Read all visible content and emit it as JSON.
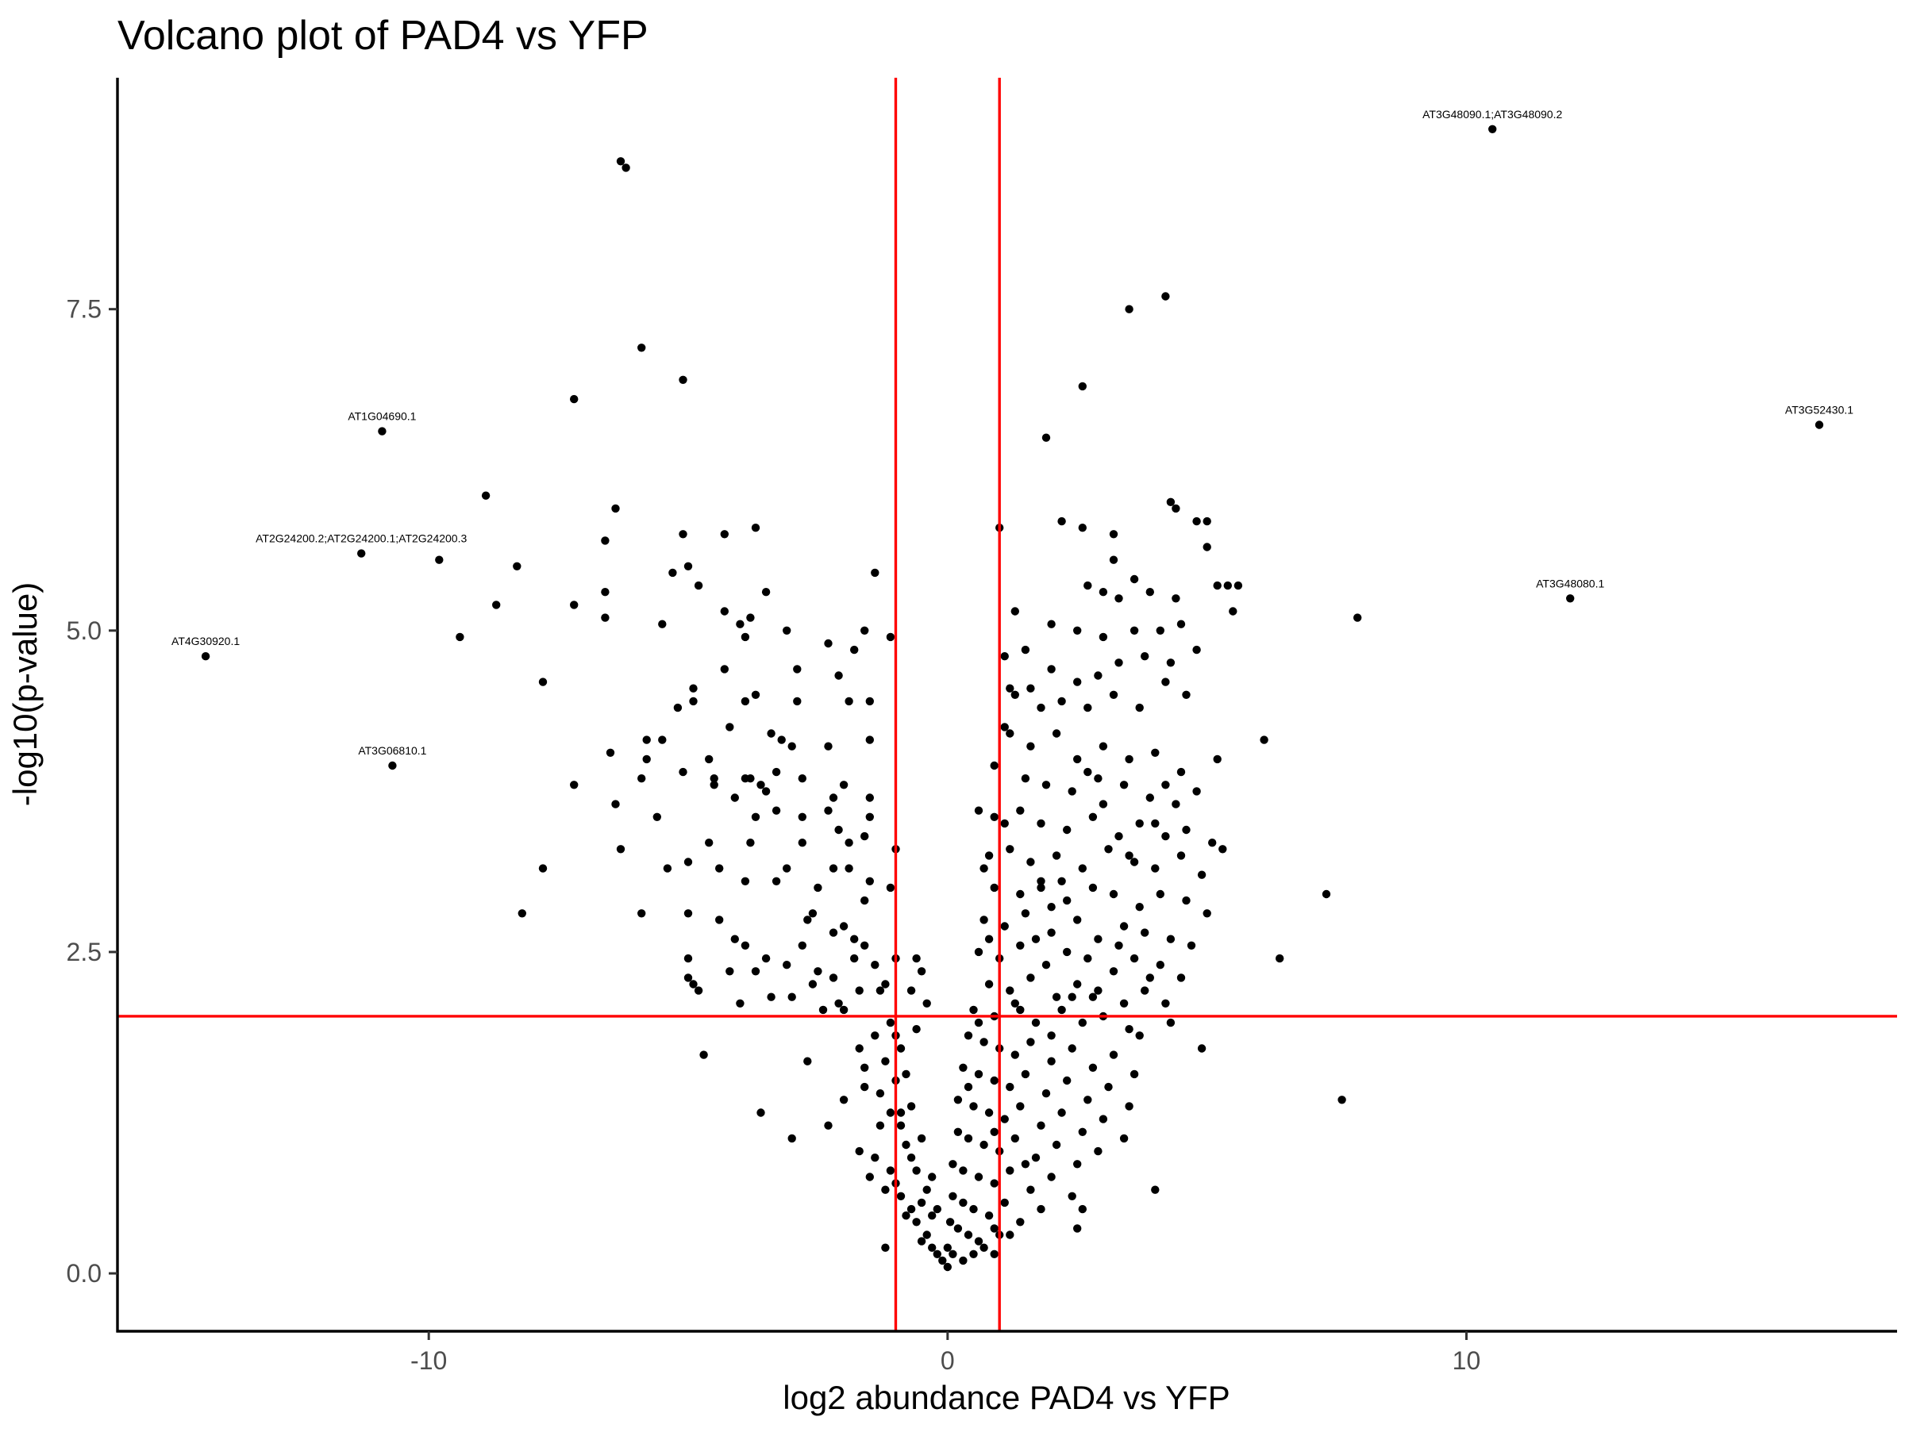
{
  "chart_data": {
    "type": "scatter",
    "title": "Volcano plot of PAD4 vs YFP",
    "xlabel": "log2 abundance PAD4 vs YFP",
    "ylabel": "-log10(p-value)",
    "xlim": [
      -16,
      18.3
    ],
    "ylim": [
      -0.45,
      9.3
    ],
    "x_ticks": [
      -10,
      0,
      10
    ],
    "x_tick_labels": [
      "-10",
      "0",
      "10"
    ],
    "y_ticks": [
      0,
      2.5,
      5,
      7.5
    ],
    "y_tick_labels": [
      "0.0",
      "2.5",
      "5.0",
      "7.5"
    ],
    "grid": false,
    "legend": "none",
    "colors": {
      "points": "#000000",
      "threshold_lines": "#ff0000",
      "axes": "#000000"
    },
    "thresholds": {
      "x": [
        -1,
        1
      ],
      "y": [
        2
      ]
    },
    "labeled_points": [
      {
        "label": "AT3G48090.1;AT3G48090.2",
        "x": 10.5,
        "y": 8.9
      },
      {
        "label": "AT3G52430.1",
        "x": 16.8,
        "y": 6.6
      },
      {
        "label": "AT1G04690.1",
        "x": -10.9,
        "y": 6.55
      },
      {
        "label": "AT2G24200.2;AT2G24200.1;AT2G24200.3",
        "x": -11.3,
        "y": 5.6
      },
      {
        "label": "AT3G48080.1",
        "x": 12.0,
        "y": 5.25
      },
      {
        "label": "AT4G30920.1",
        "x": -14.3,
        "y": 4.8
      },
      {
        "label": "AT3G06810.1",
        "x": -10.7,
        "y": 3.95
      }
    ],
    "points": [
      [
        -6.3,
        8.65
      ],
      [
        -5.9,
        7.2
      ],
      [
        -5.1,
        6.95
      ],
      [
        -7.2,
        6.8
      ],
      [
        -8.9,
        6.05
      ],
      [
        -6.4,
        5.95
      ],
      [
        -9.8,
        5.55
      ],
      [
        -8.3,
        5.5
      ],
      [
        -8.7,
        5.2
      ],
      [
        -9.4,
        4.95
      ],
      [
        -7.8,
        4.6
      ],
      [
        -7.2,
        5.2
      ],
      [
        -6.6,
        5.7
      ],
      [
        -6.6,
        5.3
      ],
      [
        -6.6,
        5.1
      ],
      [
        -5.5,
        5.05
      ],
      [
        -5.3,
        5.45
      ],
      [
        -5.1,
        5.75
      ],
      [
        -5.0,
        5.5
      ],
      [
        -4.3,
        5.75
      ],
      [
        -3.7,
        5.8
      ],
      [
        -4.8,
        5.35
      ],
      [
        -4.3,
        5.15
      ],
      [
        -3.8,
        5.1
      ],
      [
        -3.5,
        5.3
      ],
      [
        -3.9,
        4.95
      ],
      [
        -4.0,
        5.05
      ],
      [
        -3.1,
        5.0
      ],
      [
        -2.3,
        4.9
      ],
      [
        -1.6,
        5.0
      ],
      [
        -1.4,
        5.45
      ],
      [
        -1.1,
        4.95
      ],
      [
        -1.8,
        4.85
      ],
      [
        -2.1,
        4.65
      ],
      [
        -2.9,
        4.7
      ],
      [
        -4.9,
        4.55
      ],
      [
        -4.3,
        4.7
      ],
      [
        -4.9,
        4.45
      ],
      [
        -5.2,
        4.4
      ],
      [
        -3.9,
        4.45
      ],
      [
        -5.8,
        4.15
      ],
      [
        -5.5,
        4.15
      ],
      [
        -6.5,
        4.05
      ],
      [
        -5.8,
        4.0
      ],
      [
        -5.9,
        3.85
      ],
      [
        -5.1,
        3.9
      ],
      [
        -4.6,
        4.0
      ],
      [
        -4.5,
        3.85
      ],
      [
        -4.2,
        4.25
      ],
      [
        -3.7,
        4.5
      ],
      [
        -3.4,
        4.2
      ],
      [
        -3.2,
        4.15
      ],
      [
        -3.0,
        4.1
      ],
      [
        -3.8,
        3.85
      ],
      [
        -3.6,
        3.8
      ],
      [
        -3.3,
        3.9
      ],
      [
        -2.9,
        4.45
      ],
      [
        -2.3,
        4.1
      ],
      [
        -1.9,
        4.45
      ],
      [
        -1.5,
        4.45
      ],
      [
        -1.5,
        4.15
      ],
      [
        -2.8,
        3.85
      ],
      [
        -2.2,
        3.7
      ],
      [
        -2.0,
        3.8
      ],
      [
        -1.5,
        3.7
      ],
      [
        -1.5,
        3.55
      ],
      [
        -7.2,
        3.8
      ],
      [
        -6.4,
        3.65
      ],
      [
        -6.3,
        3.3
      ],
      [
        -5.6,
        3.55
      ],
      [
        -4.5,
        3.8
      ],
      [
        -4.1,
        3.7
      ],
      [
        -3.9,
        3.85
      ],
      [
        -3.7,
        3.55
      ],
      [
        -3.5,
        3.75
      ],
      [
        -3.3,
        3.6
      ],
      [
        -2.8,
        3.55
      ],
      [
        -2.3,
        3.6
      ],
      [
        -2.1,
        3.45
      ],
      [
        -1.6,
        3.4
      ],
      [
        -1.9,
        3.35
      ],
      [
        -1.0,
        3.3
      ],
      [
        -4.6,
        3.35
      ],
      [
        -3.8,
        3.35
      ],
      [
        -2.8,
        3.35
      ],
      [
        -2.2,
        3.15
      ],
      [
        -7.8,
        3.15
      ],
      [
        -5.4,
        3.15
      ],
      [
        -5.0,
        3.2
      ],
      [
        -4.4,
        3.15
      ],
      [
        -3.9,
        3.05
      ],
      [
        -3.3,
        3.05
      ],
      [
        -3.1,
        3.15
      ],
      [
        -2.5,
        3.0
      ],
      [
        -1.9,
        3.15
      ],
      [
        -1.5,
        3.05
      ],
      [
        -1.1,
        3.0
      ],
      [
        -1.6,
        2.9
      ],
      [
        -8.2,
        2.8
      ],
      [
        -5.9,
        2.8
      ],
      [
        -5.0,
        2.8
      ],
      [
        -4.4,
        2.75
      ],
      [
        -4.1,
        2.6
      ],
      [
        -3.9,
        2.55
      ],
      [
        -3.5,
        2.45
      ],
      [
        -2.6,
        2.8
      ],
      [
        -2.7,
        2.75
      ],
      [
        -2.2,
        2.65
      ],
      [
        -2.0,
        2.7
      ],
      [
        -1.8,
        2.6
      ],
      [
        -1.6,
        2.55
      ],
      [
        -2.8,
        2.55
      ],
      [
        -3.1,
        2.4
      ],
      [
        -2.5,
        2.35
      ],
      [
        -2.2,
        2.3
      ],
      [
        -1.8,
        2.45
      ],
      [
        -1.4,
        2.4
      ],
      [
        -1.0,
        2.45
      ],
      [
        -0.6,
        2.45
      ],
      [
        -0.5,
        2.35
      ],
      [
        -5.0,
        2.45
      ],
      [
        -5.0,
        2.3
      ],
      [
        -4.8,
        2.2
      ],
      [
        -4.9,
        2.25
      ],
      [
        -4.2,
        2.35
      ],
      [
        -3.7,
        2.35
      ],
      [
        -3.4,
        2.15
      ],
      [
        -3.0,
        2.15
      ],
      [
        -2.6,
        2.25
      ],
      [
        -2.4,
        2.05
      ],
      [
        -2.1,
        2.1
      ],
      [
        -1.7,
        2.2
      ],
      [
        -1.3,
        2.2
      ],
      [
        -1.2,
        2.25
      ],
      [
        -0.7,
        2.2
      ],
      [
        -0.4,
        2.1
      ],
      [
        -4.0,
        2.1
      ],
      [
        -2.0,
        2.05
      ],
      [
        -6.2,
        8.6
      ],
      [
        -4.7,
        1.7
      ],
      [
        -2.7,
        1.65
      ],
      [
        -1.7,
        1.75
      ],
      [
        -1.0,
        1.85
      ],
      [
        -3.6,
        1.25
      ],
      [
        -3.0,
        1.05
      ],
      [
        -2.3,
        1.15
      ],
      [
        -2.0,
        1.35
      ],
      [
        -1.6,
        1.45
      ],
      [
        -1.3,
        1.15
      ],
      [
        -0.9,
        1.25
      ],
      [
        3.5,
        7.5
      ],
      [
        4.2,
        7.6
      ],
      [
        2.6,
        6.9
      ],
      [
        1.9,
        6.5
      ],
      [
        4.3,
        6.0
      ],
      [
        4.4,
        5.95
      ],
      [
        4.8,
        5.85
      ],
      [
        5.0,
        5.85
      ],
      [
        2.2,
        5.85
      ],
      [
        1.0,
        5.8
      ],
      [
        2.6,
        5.8
      ],
      [
        3.2,
        5.75
      ],
      [
        5.0,
        5.65
      ],
      [
        3.2,
        5.55
      ],
      [
        3.6,
        5.4
      ],
      [
        5.2,
        5.35
      ],
      [
        5.4,
        5.35
      ],
      [
        5.6,
        5.35
      ],
      [
        2.7,
        5.35
      ],
      [
        3.0,
        5.3
      ],
      [
        3.3,
        5.25
      ],
      [
        3.9,
        5.3
      ],
      [
        4.4,
        5.25
      ],
      [
        5.5,
        5.15
      ],
      [
        1.3,
        5.15
      ],
      [
        2.0,
        5.05
      ],
      [
        2.5,
        5.0
      ],
      [
        3.0,
        4.95
      ],
      [
        3.6,
        5.0
      ],
      [
        4.1,
        5.0
      ],
      [
        4.5,
        5.05
      ],
      [
        1.1,
        4.8
      ],
      [
        1.5,
        4.85
      ],
      [
        2.0,
        4.7
      ],
      [
        2.5,
        4.6
      ],
      [
        2.9,
        4.65
      ],
      [
        3.3,
        4.75
      ],
      [
        3.8,
        4.8
      ],
      [
        4.3,
        4.75
      ],
      [
        4.8,
        4.85
      ],
      [
        1.3,
        4.5
      ],
      [
        1.8,
        4.4
      ],
      [
        2.2,
        4.45
      ],
      [
        2.7,
        4.4
      ],
      [
        3.2,
        4.5
      ],
      [
        3.7,
        4.4
      ],
      [
        4.6,
        4.5
      ],
      [
        4.2,
        4.6
      ],
      [
        6.1,
        4.15
      ],
      [
        1.2,
        4.2
      ],
      [
        1.6,
        4.1
      ],
      [
        2.1,
        4.2
      ],
      [
        2.5,
        4.0
      ],
      [
        3.0,
        4.1
      ],
      [
        3.5,
        4.0
      ],
      [
        4.0,
        4.05
      ],
      [
        4.5,
        3.9
      ],
      [
        5.2,
        4.0
      ],
      [
        1.5,
        3.85
      ],
      [
        1.9,
        3.8
      ],
      [
        2.4,
        3.75
      ],
      [
        2.9,
        3.85
      ],
      [
        3.4,
        3.8
      ],
      [
        3.9,
        3.7
      ],
      [
        4.4,
        3.65
      ],
      [
        4.8,
        3.75
      ],
      [
        0.9,
        3.55
      ],
      [
        1.4,
        3.6
      ],
      [
        1.8,
        3.5
      ],
      [
        2.3,
        3.45
      ],
      [
        2.8,
        3.55
      ],
      [
        3.3,
        3.4
      ],
      [
        3.7,
        3.5
      ],
      [
        4.2,
        3.4
      ],
      [
        4.6,
        3.45
      ],
      [
        5.1,
        3.35
      ],
      [
        0.8,
        3.25
      ],
      [
        1.2,
        3.3
      ],
      [
        1.6,
        3.2
      ],
      [
        2.1,
        3.25
      ],
      [
        2.6,
        3.15
      ],
      [
        3.1,
        3.3
      ],
      [
        3.6,
        3.2
      ],
      [
        4.0,
        3.15
      ],
      [
        4.5,
        3.25
      ],
      [
        4.9,
        3.1
      ],
      [
        5.3,
        3.3
      ],
      [
        0.9,
        3.0
      ],
      [
        1.4,
        2.95
      ],
      [
        1.8,
        3.05
      ],
      [
        2.3,
        2.9
      ],
      [
        2.8,
        3.0
      ],
      [
        3.2,
        2.95
      ],
      [
        3.7,
        2.85
      ],
      [
        4.1,
        2.95
      ],
      [
        4.6,
        2.9
      ],
      [
        5.0,
        2.8
      ],
      [
        0.7,
        2.75
      ],
      [
        1.1,
        2.7
      ],
      [
        1.5,
        2.8
      ],
      [
        2.0,
        2.65
      ],
      [
        2.5,
        2.75
      ],
      [
        2.9,
        2.6
      ],
      [
        3.4,
        2.7
      ],
      [
        3.8,
        2.65
      ],
      [
        4.3,
        2.6
      ],
      [
        4.7,
        2.55
      ],
      [
        0.6,
        2.5
      ],
      [
        1.0,
        2.45
      ],
      [
        1.4,
        2.55
      ],
      [
        1.9,
        2.4
      ],
      [
        2.3,
        2.5
      ],
      [
        2.7,
        2.45
      ],
      [
        3.2,
        2.35
      ],
      [
        3.6,
        2.45
      ],
      [
        4.1,
        2.4
      ],
      [
        4.5,
        2.3
      ],
      [
        0.8,
        2.25
      ],
      [
        1.2,
        2.2
      ],
      [
        1.6,
        2.3
      ],
      [
        2.1,
        2.15
      ],
      [
        2.5,
        2.25
      ],
      [
        2.9,
        2.2
      ],
      [
        3.4,
        2.1
      ],
      [
        3.8,
        2.2
      ],
      [
        4.2,
        2.1
      ],
      [
        0.5,
        2.05
      ],
      [
        0.9,
        2.0
      ],
      [
        1.3,
        2.1
      ],
      [
        1.7,
        1.95
      ],
      [
        2.2,
        2.05
      ],
      [
        2.6,
        1.95
      ],
      [
        3.0,
        2.0
      ],
      [
        3.5,
        1.9
      ],
      [
        4.3,
        1.95
      ],
      [
        4.9,
        1.75
      ],
      [
        7.3,
        2.95
      ],
      [
        7.9,
        5.1
      ],
      [
        6.4,
        2.45
      ],
      [
        7.6,
        1.35
      ],
      [
        4.0,
        0.65
      ],
      [
        0.4,
        1.85
      ],
      [
        0.7,
        1.8
      ],
      [
        1.0,
        1.75
      ],
      [
        1.3,
        1.7
      ],
      [
        1.6,
        1.8
      ],
      [
        2.0,
        1.65
      ],
      [
        2.4,
        1.75
      ],
      [
        2.8,
        1.6
      ],
      [
        3.2,
        1.7
      ],
      [
        3.6,
        1.55
      ],
      [
        0.3,
        1.6
      ],
      [
        0.6,
        1.55
      ],
      [
        0.9,
        1.5
      ],
      [
        1.2,
        1.45
      ],
      [
        1.5,
        1.55
      ],
      [
        1.9,
        1.4
      ],
      [
        2.3,
        1.5
      ],
      [
        2.7,
        1.35
      ],
      [
        3.1,
        1.45
      ],
      [
        3.5,
        1.3
      ],
      [
        0.2,
        1.35
      ],
      [
        0.5,
        1.3
      ],
      [
        0.8,
        1.25
      ],
      [
        1.1,
        1.2
      ],
      [
        1.4,
        1.3
      ],
      [
        1.8,
        1.15
      ],
      [
        2.2,
        1.25
      ],
      [
        2.6,
        1.1
      ],
      [
        3.0,
        1.2
      ],
      [
        3.4,
        1.05
      ],
      [
        0.2,
        1.1
      ],
      [
        0.4,
        1.05
      ],
      [
        0.7,
        1.0
      ],
      [
        1.0,
        0.95
      ],
      [
        1.3,
        1.05
      ],
      [
        1.7,
        0.9
      ],
      [
        2.1,
        1.0
      ],
      [
        2.5,
        0.85
      ],
      [
        2.9,
        0.95
      ],
      [
        0.1,
        0.85
      ],
      [
        0.3,
        0.8
      ],
      [
        0.6,
        0.75
      ],
      [
        0.9,
        0.7
      ],
      [
        1.2,
        0.8
      ],
      [
        1.6,
        0.65
      ],
      [
        2.0,
        0.75
      ],
      [
        2.4,
        0.6
      ],
      [
        2.6,
        0.5
      ],
      [
        2.5,
        0.35
      ],
      [
        0.1,
        0.6
      ],
      [
        0.3,
        0.55
      ],
      [
        0.5,
        0.5
      ],
      [
        0.8,
        0.45
      ],
      [
        1.1,
        0.55
      ],
      [
        1.4,
        0.4
      ],
      [
        1.8,
        0.5
      ],
      [
        0.05,
        0.4
      ],
      [
        0.2,
        0.35
      ],
      [
        0.4,
        0.3
      ],
      [
        0.6,
        0.25
      ],
      [
        0.9,
        0.35
      ],
      [
        1.2,
        0.3
      ],
      [
        0.0,
        0.2
      ],
      [
        0.1,
        0.15
      ],
      [
        0.3,
        0.1
      ],
      [
        0.5,
        0.15
      ],
      [
        0.7,
        0.2
      ],
      [
        -0.1,
        0.1
      ],
      [
        0.0,
        0.05
      ],
      [
        -0.2,
        0.15
      ],
      [
        -0.3,
        0.2
      ],
      [
        -0.4,
        0.3
      ],
      [
        -0.5,
        0.25
      ],
      [
        -0.6,
        0.4
      ],
      [
        -0.7,
        0.5
      ],
      [
        -0.8,
        0.45
      ],
      [
        -0.9,
        0.6
      ],
      [
        -1.0,
        0.7
      ],
      [
        -1.1,
        0.8
      ],
      [
        -1.2,
        0.65
      ],
      [
        -1.4,
        0.9
      ],
      [
        -1.5,
        0.75
      ],
      [
        -1.7,
        0.95
      ],
      [
        -0.3,
        0.45
      ],
      [
        -0.5,
        0.55
      ],
      [
        -0.4,
        0.65
      ],
      [
        -0.6,
        0.8
      ],
      [
        -0.7,
        0.9
      ],
      [
        -0.8,
        1.0
      ],
      [
        -0.5,
        1.05
      ],
      [
        -0.9,
        1.15
      ],
      [
        -1.1,
        1.25
      ],
      [
        -0.7,
        1.3
      ],
      [
        -1.3,
        1.4
      ],
      [
        -1.0,
        1.5
      ],
      [
        -0.8,
        1.55
      ],
      [
        -1.2,
        1.65
      ],
      [
        -0.9,
        1.75
      ],
      [
        -1.6,
        1.6
      ],
      [
        -1.4,
        1.85
      ],
      [
        -0.6,
        1.9
      ],
      [
        -1.1,
        1.95
      ],
      [
        -0.3,
        0.75
      ],
      [
        -0.2,
        0.5
      ],
      [
        -1.2,
        0.2
      ],
      [
        0.9,
        0.15
      ],
      [
        0.4,
        1.45
      ],
      [
        0.6,
        1.95
      ],
      [
        0.8,
        2.6
      ],
      [
        0.7,
        3.15
      ],
      [
        0.6,
        3.6
      ],
      [
        0.9,
        3.95
      ],
      [
        1.1,
        4.25
      ],
      [
        1.2,
        4.55
      ],
      [
        1.6,
        4.55
      ],
      [
        0.9,
        1.1
      ],
      [
        1.5,
        0.85
      ],
      [
        1.0,
        0.3
      ],
      [
        2.2,
        3.05
      ],
      [
        2.0,
        2.85
      ],
      [
        3.0,
        3.65
      ],
      [
        3.5,
        3.25
      ],
      [
        4.0,
        3.5
      ],
      [
        1.7,
        2.6
      ],
      [
        2.4,
        2.15
      ],
      [
        3.3,
        2.55
      ],
      [
        3.9,
        2.3
      ],
      [
        1.1,
        3.5
      ],
      [
        1.8,
        3.0
      ],
      [
        2.7,
        3.9
      ],
      [
        4.2,
        3.8
      ],
      [
        2.8,
        2.15
      ],
      [
        1.4,
        2.05
      ],
      [
        3.7,
        1.85
      ],
      [
        2.0,
        1.85
      ]
    ]
  }
}
